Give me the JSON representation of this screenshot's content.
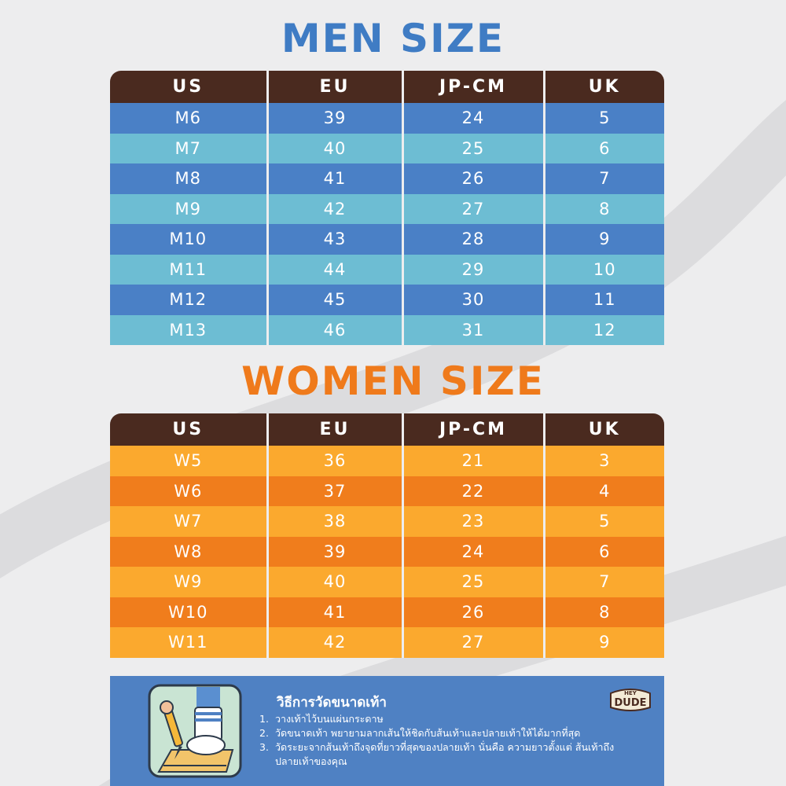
{
  "men": {
    "title": "MEN SIZE",
    "headers": [
      "US",
      "EU",
      "JP-CM",
      "UK"
    ],
    "rows": [
      [
        "M6",
        "39",
        "24",
        "5"
      ],
      [
        "M7",
        "40",
        "25",
        "6"
      ],
      [
        "M8",
        "41",
        "26",
        "7"
      ],
      [
        "M9",
        "42",
        "27",
        "8"
      ],
      [
        "M10",
        "43",
        "28",
        "9"
      ],
      [
        "M11",
        "44",
        "29",
        "10"
      ],
      [
        "M12",
        "45",
        "30",
        "11"
      ],
      [
        "M13",
        "46",
        "31",
        "12"
      ]
    ],
    "colors": {
      "header": "#4a2a1f",
      "row_a": "#4a80c6",
      "row_b": "#6dbdd3",
      "title": "#3f7cc4"
    }
  },
  "women": {
    "title": "WOMEN SIZE",
    "headers": [
      "US",
      "EU",
      "JP-CM",
      "UK"
    ],
    "rows": [
      [
        "W5",
        "36",
        "21",
        "3"
      ],
      [
        "W6",
        "37",
        "22",
        "4"
      ],
      [
        "W7",
        "38",
        "23",
        "5"
      ],
      [
        "W8",
        "39",
        "24",
        "6"
      ],
      [
        "W9",
        "40",
        "25",
        "7"
      ],
      [
        "W10",
        "41",
        "26",
        "8"
      ],
      [
        "W11",
        "42",
        "27",
        "9"
      ]
    ],
    "colors": {
      "header": "#4a2a1f",
      "row_a": "#fba92e",
      "row_b": "#f07d1c",
      "title": "#ef7a1b"
    }
  },
  "howto": {
    "title": "วิธีการวัดขนาดเท้า",
    "steps": [
      {
        "num": "1.",
        "text": "วางเท้าไว้บนแผ่นกระดาษ"
      },
      {
        "num": "2.",
        "text": "วัดขนาดเท้า พยายามลากเส้นให้ชิดกับส้นเท้าและปลายเท้าให้ได้มากที่สุด"
      },
      {
        "num": "3.",
        "text": "วัดระยะจากส้นเท้าถึงจุดที่ยาวที่สุดของปลายเท้า นั่นคือ ความยาวตั้งแต่ ส้นเท้าถึงปลายเท้าของคุณ"
      }
    ],
    "illustration_icon": "foot-measuring-icon",
    "background": "#4f81c3"
  },
  "brand": {
    "logo_text": "HEY DUDE",
    "logo_icon": "hey-dude-logo-icon"
  }
}
